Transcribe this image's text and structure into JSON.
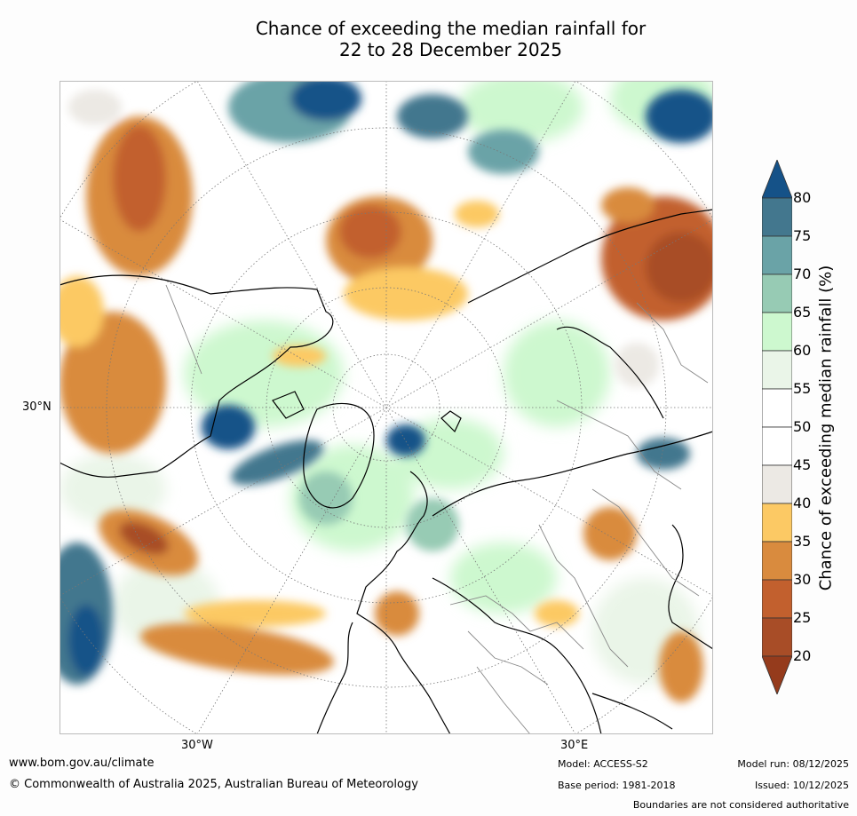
{
  "title_line1": "Chance of exceeding the median rainfall for",
  "title_line2": "22 to 28 December 2025",
  "map_labels": {
    "lat_30n": "30°N",
    "lon_30w": "30°W",
    "lon_30e": "30°E"
  },
  "legend": {
    "title": "Chance of exceeding median rainfall (%)",
    "ticks": [
      "20",
      "25",
      "30",
      "35",
      "40",
      "45",
      "50",
      "55",
      "60",
      "65",
      "70",
      "75",
      "80"
    ],
    "bins": [
      {
        "range": "<20",
        "color": "#953b1c"
      },
      {
        "range": "20-25",
        "color": "#a84d27"
      },
      {
        "range": "25-30",
        "color": "#c2602e"
      },
      {
        "range": "30-35",
        "color": "#d98b3e"
      },
      {
        "range": "35-40",
        "color": "#fcc964"
      },
      {
        "range": "40-45",
        "color": "#ece9e4"
      },
      {
        "range": "45-50",
        "color": "#ffffff"
      },
      {
        "range": "50-55",
        "color": "#ffffff"
      },
      {
        "range": "55-60",
        "color": "#eaf5e8"
      },
      {
        "range": "60-65",
        "color": "#cdf8cf"
      },
      {
        "range": "65-70",
        "color": "#97cbb4"
      },
      {
        "range": "70-75",
        "color": "#6aa3a7"
      },
      {
        "range": "75-80",
        "color": "#43778e"
      },
      {
        "range": ">80",
        "color": "#155288"
      }
    ]
  },
  "footer": {
    "url": "www.bom.gov.au/climate",
    "copyright": "© Commonwealth of Australia 2025, Australian Bureau of Meteorology",
    "model": "Model: ACCESS-S2",
    "model_run": "Model run: 08/12/2025",
    "base_period": "Base period: 1981-2018",
    "issued": "Issued: 10/12/2025",
    "disclaimer": "Boundaries are not considered authoritative"
  }
}
